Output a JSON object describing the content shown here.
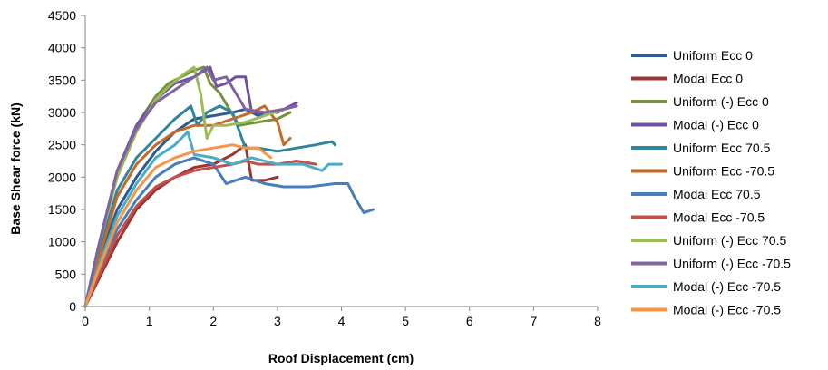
{
  "chart_data": {
    "type": "line",
    "title": "",
    "xlabel": "Roof Displacement  (cm)",
    "ylabel": "Base Shear force (kN)",
    "xlim": [
      0,
      8
    ],
    "ylim": [
      0,
      4500
    ],
    "x_ticks": [
      "0",
      "1",
      "2",
      "3",
      "4",
      "5",
      "6",
      "7",
      "8"
    ],
    "y_ticks": [
      "0",
      "500",
      "1000",
      "1500",
      "2000",
      "2500",
      "3000",
      "3500",
      "4000",
      "4500"
    ],
    "grid": false,
    "legend_position": "right",
    "series": [
      {
        "name": "Uniform Ecc 0",
        "color": "#2E5B93",
        "x": [
          0,
          0.2,
          0.5,
          0.8,
          1.1,
          1.4,
          1.7,
          2.0,
          2.3,
          2.5,
          2.7,
          2.8
        ],
        "y": [
          0,
          700,
          1500,
          2000,
          2400,
          2700,
          2900,
          2950,
          3000,
          3050,
          2950,
          3000
        ]
      },
      {
        "name": "Modal Ecc 0",
        "color": "#9E3330",
        "x": [
          0,
          0.2,
          0.5,
          0.8,
          1.1,
          1.4,
          1.7,
          2.0,
          2.3,
          2.5,
          2.6,
          2.8,
          3.0
        ],
        "y": [
          0,
          400,
          1000,
          1500,
          1800,
          2000,
          2150,
          2200,
          2350,
          2500,
          1950,
          1950,
          2000
        ]
      },
      {
        "name": "Uniform (-) Ecc 0",
        "color": "#76923C",
        "x": [
          0,
          0.2,
          0.5,
          0.8,
          1.1,
          1.3,
          1.5,
          1.7,
          1.85,
          1.95,
          2.1,
          2.4,
          2.7,
          3.0,
          3.2
        ],
        "y": [
          0,
          900,
          2100,
          2800,
          3250,
          3450,
          3550,
          3650,
          3700,
          3450,
          3300,
          2800,
          2850,
          2900,
          3000
        ]
      },
      {
        "name": "Modal (-) Ecc 0",
        "color": "#7050A0",
        "x": [
          0,
          0.2,
          0.5,
          0.8,
          1.1,
          1.4,
          1.7,
          1.95,
          2.05,
          2.2,
          2.35,
          2.5,
          2.6,
          2.8,
          3.0,
          3.3
        ],
        "y": [
          0,
          900,
          2100,
          2800,
          3200,
          3450,
          3550,
          3700,
          3400,
          3450,
          3550,
          3550,
          3000,
          3000,
          3000,
          3150
        ]
      },
      {
        "name": "Uniform Ecc 70.5",
        "color": "#31859C",
        "x": [
          0,
          0.2,
          0.5,
          0.8,
          1.1,
          1.4,
          1.65,
          1.75,
          1.9,
          2.1,
          2.3,
          2.5,
          2.7,
          3.0,
          3.3,
          3.6,
          3.85,
          3.9
        ],
        "y": [
          0,
          800,
          1800,
          2300,
          2600,
          2900,
          3100,
          2800,
          3000,
          3100,
          3000,
          2450,
          2450,
          2400,
          2450,
          2500,
          2550,
          2500
        ]
      },
      {
        "name": "Uniform Ecc -70.5",
        "color": "#C56A28",
        "x": [
          0,
          0.2,
          0.5,
          0.8,
          1.1,
          1.4,
          1.7,
          2.0,
          2.3,
          2.6,
          2.8,
          3.0,
          3.1,
          3.2
        ],
        "y": [
          0,
          700,
          1700,
          2200,
          2500,
          2700,
          2800,
          2800,
          2900,
          3000,
          3100,
          2850,
          2500,
          2600
        ]
      },
      {
        "name": "Modal Ecc 70.5",
        "color": "#4A7EBB",
        "x": [
          0,
          0.2,
          0.5,
          0.8,
          1.1,
          1.4,
          1.7,
          2.0,
          2.2,
          2.5,
          2.8,
          3.1,
          3.5,
          3.9,
          4.1,
          4.2,
          4.35,
          4.5
        ],
        "y": [
          0,
          500,
          1200,
          1650,
          2000,
          2200,
          2300,
          2200,
          1900,
          2000,
          1900,
          1850,
          1850,
          1900,
          1900,
          1700,
          1450,
          1500
        ]
      },
      {
        "name": "Modal Ecc -70.5",
        "color": "#C0504D",
        "x": [
          0,
          0.2,
          0.5,
          0.8,
          1.1,
          1.4,
          1.7,
          2.0,
          2.3,
          2.5,
          2.7,
          3.0,
          3.3,
          3.6
        ],
        "y": [
          0,
          450,
          1100,
          1550,
          1850,
          2000,
          2100,
          2150,
          2200,
          2250,
          2200,
          2200,
          2250,
          2200
        ]
      },
      {
        "name": "Uniform (-) Ecc 70.5",
        "color": "#9BBB59",
        "x": [
          0,
          0.2,
          0.5,
          0.8,
          1.1,
          1.3,
          1.55,
          1.7,
          1.8,
          1.9,
          2.0,
          2.2,
          2.5,
          2.8,
          3.1
        ],
        "y": [
          0,
          900,
          2000,
          2700,
          3200,
          3400,
          3600,
          3700,
          3300,
          2600,
          2800,
          2800,
          2850,
          2950,
          3050
        ]
      },
      {
        "name": "Uniform (-) Ecc -70.5",
        "color": "#8064A2",
        "x": [
          0,
          0.2,
          0.5,
          0.8,
          1.1,
          1.4,
          1.7,
          1.9,
          2.0,
          2.2,
          2.5,
          2.8,
          3.1,
          3.3
        ],
        "y": [
          0,
          900,
          2100,
          2750,
          3150,
          3350,
          3550,
          3700,
          3500,
          3550,
          3050,
          3000,
          3050,
          3100
        ]
      },
      {
        "name": "Modal (-) Ecc -70.5",
        "color": "#4BACC6",
        "x": [
          0,
          0.2,
          0.5,
          0.8,
          1.1,
          1.4,
          1.6,
          1.7,
          2.0,
          2.3,
          2.6,
          3.0,
          3.4,
          3.7,
          3.8,
          4.0
        ],
        "y": [
          0,
          600,
          1400,
          1900,
          2300,
          2500,
          2700,
          2350,
          2300,
          2200,
          2300,
          2200,
          2200,
          2100,
          2200,
          2200
        ]
      },
      {
        "name": "Modal (-) Ecc -70.5",
        "color": "#F79646",
        "x": [
          0,
          0.2,
          0.5,
          0.8,
          1.1,
          1.4,
          1.7,
          2.0,
          2.3,
          2.5,
          2.7,
          2.9
        ],
        "y": [
          0,
          550,
          1300,
          1800,
          2150,
          2300,
          2400,
          2450,
          2500,
          2450,
          2450,
          2300
        ]
      }
    ]
  }
}
